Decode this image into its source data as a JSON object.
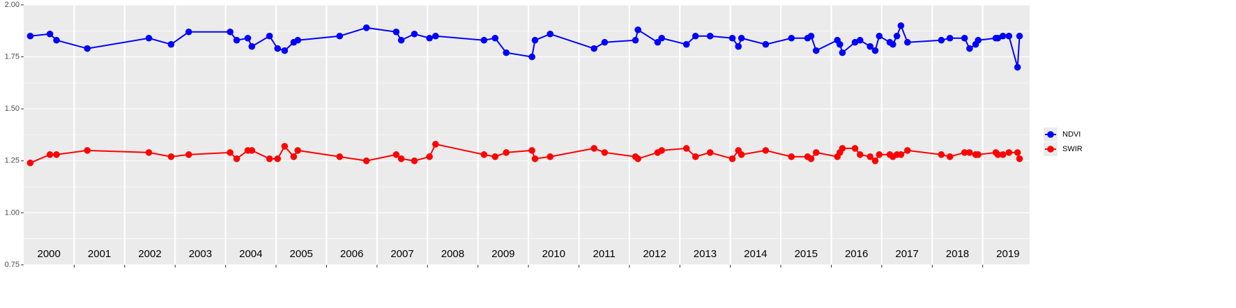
{
  "chart_data": {
    "type": "line",
    "x": [
      2000.13,
      2000.52,
      2000.65,
      2001.26,
      2002.48,
      2002.92,
      2003.27,
      2004.09,
      2004.22,
      2004.44,
      2004.52,
      2004.87,
      2005.03,
      2005.17,
      2005.35,
      2005.43,
      2006.26,
      2006.79,
      2007.38,
      2007.48,
      2007.74,
      2008.04,
      2008.16,
      2009.12,
      2009.34,
      2009.56,
      2010.07,
      2010.13,
      2010.43,
      2011.3,
      2011.51,
      2012.12,
      2012.17,
      2012.56,
      2012.64,
      2013.13,
      2013.31,
      2013.6,
      2014.04,
      2014.16,
      2014.22,
      2014.7,
      2015.21,
      2015.53,
      2015.6,
      2015.7,
      2016.12,
      2016.17,
      2016.22,
      2016.47,
      2016.57,
      2016.77,
      2016.87,
      2016.95,
      2017.16,
      2017.22,
      2017.3,
      2017.38,
      2017.51,
      2018.18,
      2018.35,
      2018.64,
      2018.74,
      2018.86,
      2018.91,
      2019.26,
      2019.3,
      2019.4,
      2019.52,
      2019.69,
      2019.73
    ],
    "series": [
      {
        "name": "NDVI",
        "color": "#0000ff",
        "values": [
          1.85,
          1.86,
          1.83,
          1.79,
          1.84,
          1.81,
          1.87,
          1.87,
          1.83,
          1.84,
          1.8,
          1.85,
          1.79,
          1.78,
          1.82,
          1.83,
          1.85,
          1.89,
          1.87,
          1.83,
          1.86,
          1.84,
          1.85,
          1.83,
          1.84,
          1.77,
          1.75,
          1.83,
          1.86,
          1.79,
          1.82,
          1.83,
          1.88,
          1.82,
          1.84,
          1.81,
          1.85,
          1.85,
          1.84,
          1.8,
          1.84,
          1.81,
          1.84,
          1.84,
          1.85,
          1.78,
          1.83,
          1.81,
          1.77,
          1.82,
          1.83,
          1.8,
          1.78,
          1.85,
          1.82,
          1.81,
          1.85,
          1.9,
          1.82,
          1.83,
          1.84,
          1.84,
          1.79,
          1.81,
          1.83,
          1.84,
          1.84,
          1.85,
          1.85,
          1.7,
          1.85
        ]
      },
      {
        "name": "SWIR",
        "color": "#ff0000",
        "values": [
          1.24,
          1.28,
          1.28,
          1.3,
          1.29,
          1.27,
          1.28,
          1.29,
          1.26,
          1.3,
          1.3,
          1.26,
          1.26,
          1.32,
          1.27,
          1.3,
          1.27,
          1.25,
          1.28,
          1.26,
          1.25,
          1.27,
          1.33,
          1.28,
          1.27,
          1.29,
          1.3,
          1.26,
          1.27,
          1.31,
          1.29,
          1.27,
          1.26,
          1.29,
          1.3,
          1.31,
          1.27,
          1.29,
          1.26,
          1.3,
          1.28,
          1.3,
          1.27,
          1.27,
          1.26,
          1.29,
          1.27,
          1.29,
          1.31,
          1.31,
          1.28,
          1.27,
          1.25,
          1.28,
          1.28,
          1.27,
          1.28,
          1.28,
          1.3,
          1.28,
          1.27,
          1.29,
          1.29,
          1.28,
          1.28,
          1.29,
          1.28,
          1.28,
          1.29,
          1.29,
          1.26
        ]
      }
    ],
    "xlim": [
      2000,
      2019.93
    ],
    "xticks": [
      2001,
      2002,
      2003,
      2004,
      2005,
      2006,
      2007,
      2008,
      2009,
      2010,
      2011,
      2012,
      2013,
      2014,
      2015,
      2016,
      2017,
      2018,
      2019
    ],
    "ylim": [
      0.75,
      2
    ],
    "yticks": [
      0.75,
      {
        "value": 1,
        "label": "1.00"
      },
      1.25,
      {
        "value": 1.5,
        "label": "1.50"
      },
      1.75,
      {
        "value": 2,
        "label": "2.00"
      }
    ],
    "y_minor_ticks": [
      0.875,
      1.125,
      1.375,
      1.625,
      1.875
    ],
    "grid": true,
    "legend": "right",
    "annotations": [
      {
        "text": "2000",
        "x": 2000.5,
        "y": 0.8
      },
      {
        "text": "2001",
        "x": 2001.5,
        "y": 0.8
      },
      {
        "text": "2002",
        "x": 2002.5,
        "y": 0.8
      },
      {
        "text": "2003",
        "x": 2003.5,
        "y": 0.8
      },
      {
        "text": "2004",
        "x": 2004.5,
        "y": 0.8
      },
      {
        "text": "2005",
        "x": 2005.5,
        "y": 0.8
      },
      {
        "text": "2006",
        "x": 2006.5,
        "y": 0.8
      },
      {
        "text": "2007",
        "x": 2007.5,
        "y": 0.8
      },
      {
        "text": "2008",
        "x": 2008.5,
        "y": 0.8
      },
      {
        "text": "2009",
        "x": 2009.5,
        "y": 0.8
      },
      {
        "text": "2010",
        "x": 2010.5,
        "y": 0.8
      },
      {
        "text": "2011",
        "x": 2011.5,
        "y": 0.8
      },
      {
        "text": "2012",
        "x": 2012.5,
        "y": 0.8
      },
      {
        "text": "2013",
        "x": 2013.5,
        "y": 0.8
      },
      {
        "text": "2014",
        "x": 2014.5,
        "y": 0.8
      },
      {
        "text": "2015",
        "x": 2015.5,
        "y": 0.8
      },
      {
        "text": "2016",
        "x": 2016.5,
        "y": 0.8
      },
      {
        "text": "2017",
        "x": 2017.5,
        "y": 0.8
      },
      {
        "text": "2018",
        "x": 2018.5,
        "y": 0.8
      },
      {
        "text": "2019",
        "x": 2019.5,
        "y": 0.8
      }
    ]
  }
}
